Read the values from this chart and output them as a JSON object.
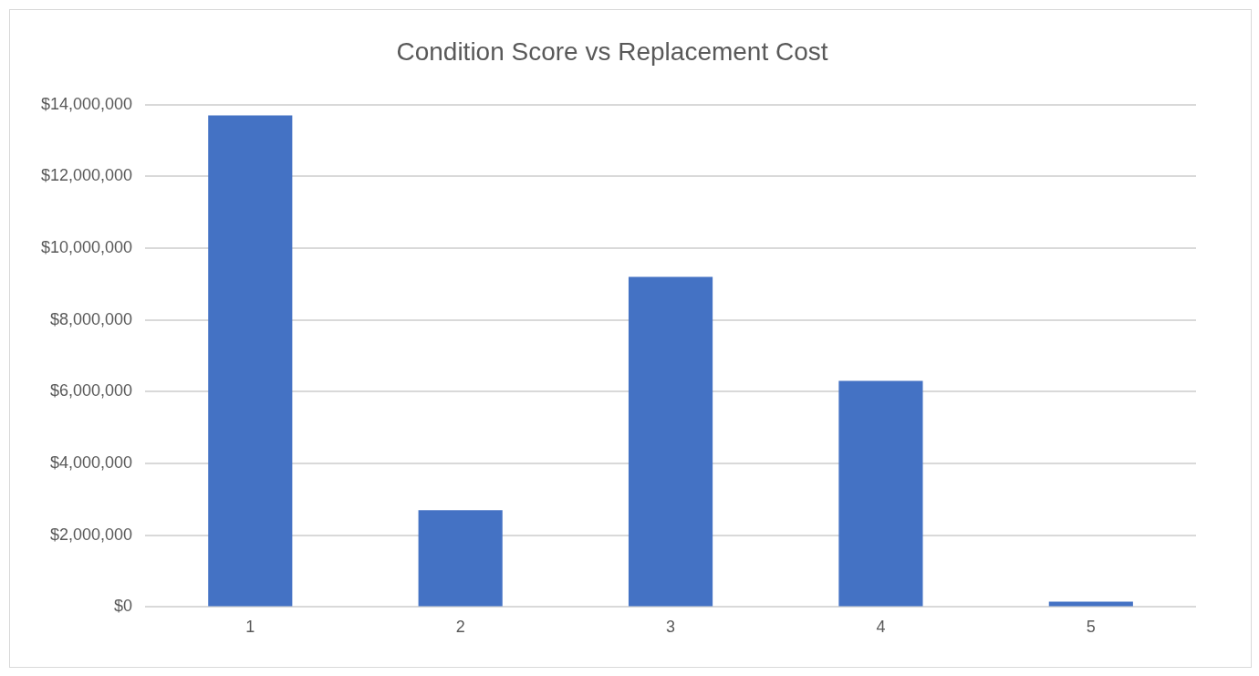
{
  "chart_data": {
    "type": "bar",
    "title": "Condition Score vs Replacement Cost",
    "categories": [
      "1",
      "2",
      "3",
      "4",
      "5"
    ],
    "values": [
      13700000,
      2700000,
      9200000,
      6300000,
      150000
    ],
    "color": "#4472c4",
    "ylim": [
      0,
      14000000
    ],
    "yticks": [
      {
        "value": 0,
        "label": "$0"
      },
      {
        "value": 2000000,
        "label": "$2,000,000"
      },
      {
        "value": 4000000,
        "label": "$4,000,000"
      },
      {
        "value": 6000000,
        "label": "$6,000,000"
      },
      {
        "value": 8000000,
        "label": "$8,000,000"
      },
      {
        "value": 10000000,
        "label": "$10,000,000"
      },
      {
        "value": 12000000,
        "label": "$12,000,000"
      },
      {
        "value": 14000000,
        "label": "$14,000,000"
      }
    ],
    "grid": "y",
    "legend": false
  }
}
